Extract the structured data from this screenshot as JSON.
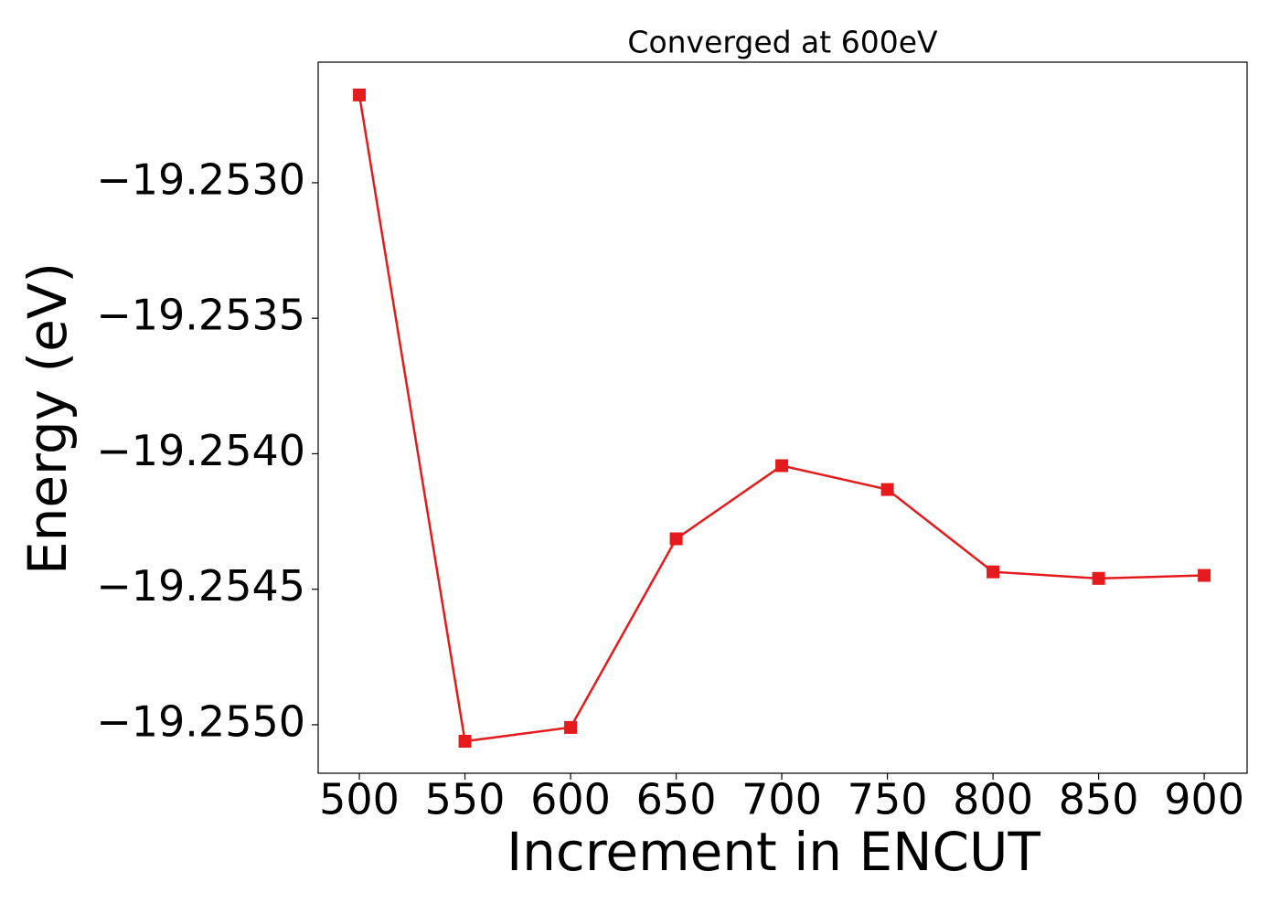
{
  "chart_data": {
    "type": "line",
    "title": "Converged at 600eV",
    "x_label": "Increment in ENCUT",
    "y_label": "Energy (eV)",
    "x": [
      500,
      550,
      600,
      650,
      700,
      750,
      800,
      850,
      900
    ],
    "values": [
      -19.252676,
      -19.255061,
      -19.25501,
      -19.254314,
      -19.254044,
      -19.254132,
      -19.254436,
      -19.25446,
      -19.254449
    ],
    "color": "#e41a1c",
    "marker": "square",
    "xlim": [
      480.5,
      920.3
    ],
    "ylim": [
      -19.255179,
      -19.252555
    ],
    "xticks": [
      500,
      550,
      600,
      650,
      700,
      750,
      800,
      850,
      900
    ],
    "yticks": [
      {
        "value": -19.255,
        "label": "−19.2550"
      },
      {
        "value": -19.2545,
        "label": "−19.2545"
      },
      {
        "value": -19.254,
        "label": "−19.2540"
      },
      {
        "value": -19.2535,
        "label": "−19.2535"
      },
      {
        "value": -19.253,
        "label": "−19.2530"
      }
    ],
    "grid": false
  }
}
